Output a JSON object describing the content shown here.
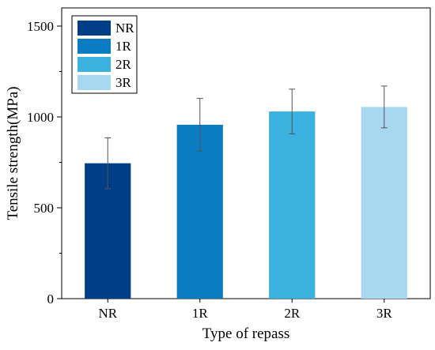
{
  "chart_data": {
    "type": "bar",
    "title": "",
    "xlabel": "Type of repass",
    "ylabel": "Tensile strength(MPa)",
    "categories": [
      "NR",
      "1R",
      "2R",
      "3R"
    ],
    "values": [
      745,
      957,
      1030,
      1055
    ],
    "error": [
      140,
      145,
      123,
      115
    ],
    "ylim": [
      0,
      1600
    ],
    "yticks": [
      0,
      500,
      1000,
      1500
    ],
    "ytick_labels": [
      "0",
      "500",
      "1000",
      "1500"
    ],
    "colors": [
      "#003f87",
      "#0a7cc1",
      "#3ab1de",
      "#a8d8f0"
    ],
    "legend": {
      "placement": "top-left",
      "entries": [
        "NR",
        "1R",
        "2R",
        "3R"
      ]
    },
    "grid": false
  }
}
